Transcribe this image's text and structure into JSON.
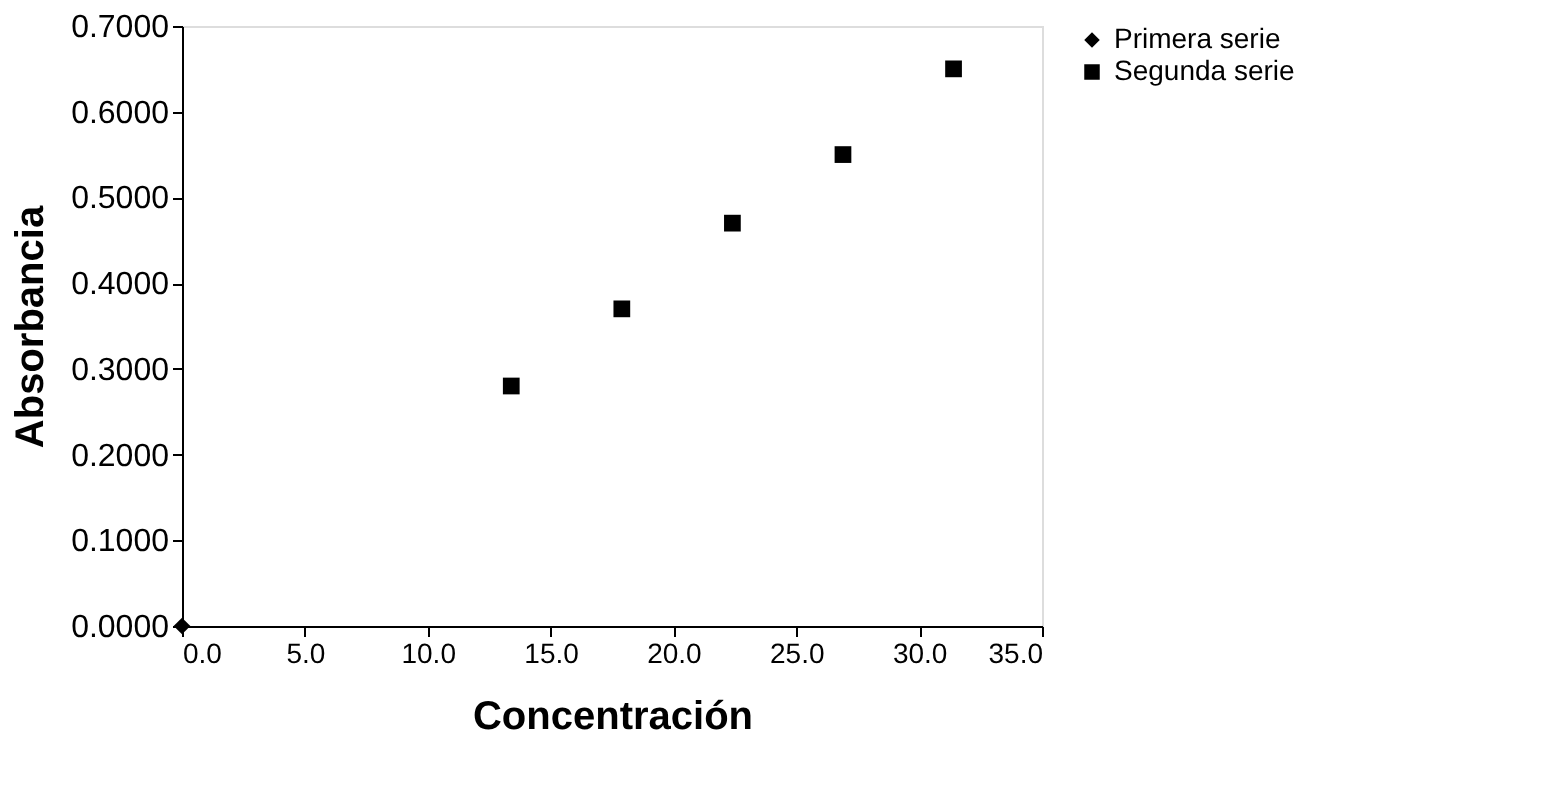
{
  "chart_data": {
    "type": "scatter",
    "xlabel": "Concentración",
    "ylabel": "Absorbancia",
    "xlim": [
      0,
      35
    ],
    "ylim": [
      0,
      0.7
    ],
    "xticks": [
      {
        "value": 0,
        "label": "0.0"
      },
      {
        "value": 5,
        "label": "5.0"
      },
      {
        "value": 10,
        "label": "10.0"
      },
      {
        "value": 15,
        "label": "15.0"
      },
      {
        "value": 20,
        "label": "20.0"
      },
      {
        "value": 25,
        "label": "25.0"
      },
      {
        "value": 30,
        "label": "30.0"
      },
      {
        "value": 35,
        "label": "35.0"
      }
    ],
    "yticks": [
      {
        "value": 0,
        "label": "0.0000"
      },
      {
        "value": 0.1,
        "label": "0.1000"
      },
      {
        "value": 0.2,
        "label": "0.2000"
      },
      {
        "value": 0.3,
        "label": "0.3000"
      },
      {
        "value": 0.4,
        "label": "0.4000"
      },
      {
        "value": 0.5,
        "label": "0.5000"
      },
      {
        "value": 0.6,
        "label": "0.6000"
      },
      {
        "value": 0.7,
        "label": "0.7000"
      }
    ],
    "grid": false,
    "legend": "right",
    "series": [
      {
        "name": "Primera serie",
        "color": "#000000",
        "marker": "diamond",
        "x": [
          0
        ],
        "values": [
          0
        ]
      },
      {
        "name": "Segunda serie",
        "color": "#000000",
        "marker": "square",
        "x": [
          13.4,
          17.9,
          22.4,
          26.9,
          31.4
        ],
        "values": [
          0.28,
          0.37,
          0.47,
          0.55,
          0.65
        ]
      }
    ]
  }
}
